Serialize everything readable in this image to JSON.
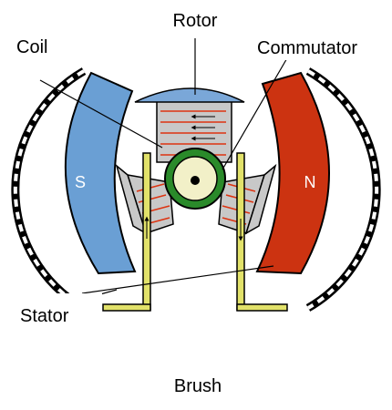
{
  "labels": {
    "rotor": "Rotor",
    "coil": "Coil",
    "commutator": "Commutator",
    "stator": "Stator",
    "brush": "Brush",
    "south_pole": "S",
    "north_pole": "N"
  },
  "colors": {
    "south_magnet": "#6a9fd4",
    "north_magnet": "#cc3311",
    "rotor_core": "#c8c8c8",
    "rotor_cap": "#7aa7d8",
    "coil_wire": "#dd3311",
    "commutator_ring": "#2a8a2a",
    "shaft": "#f2f0c8",
    "brush_bar": "#e2e26a",
    "outline": "#000000",
    "label_box": "#ffffff"
  }
}
